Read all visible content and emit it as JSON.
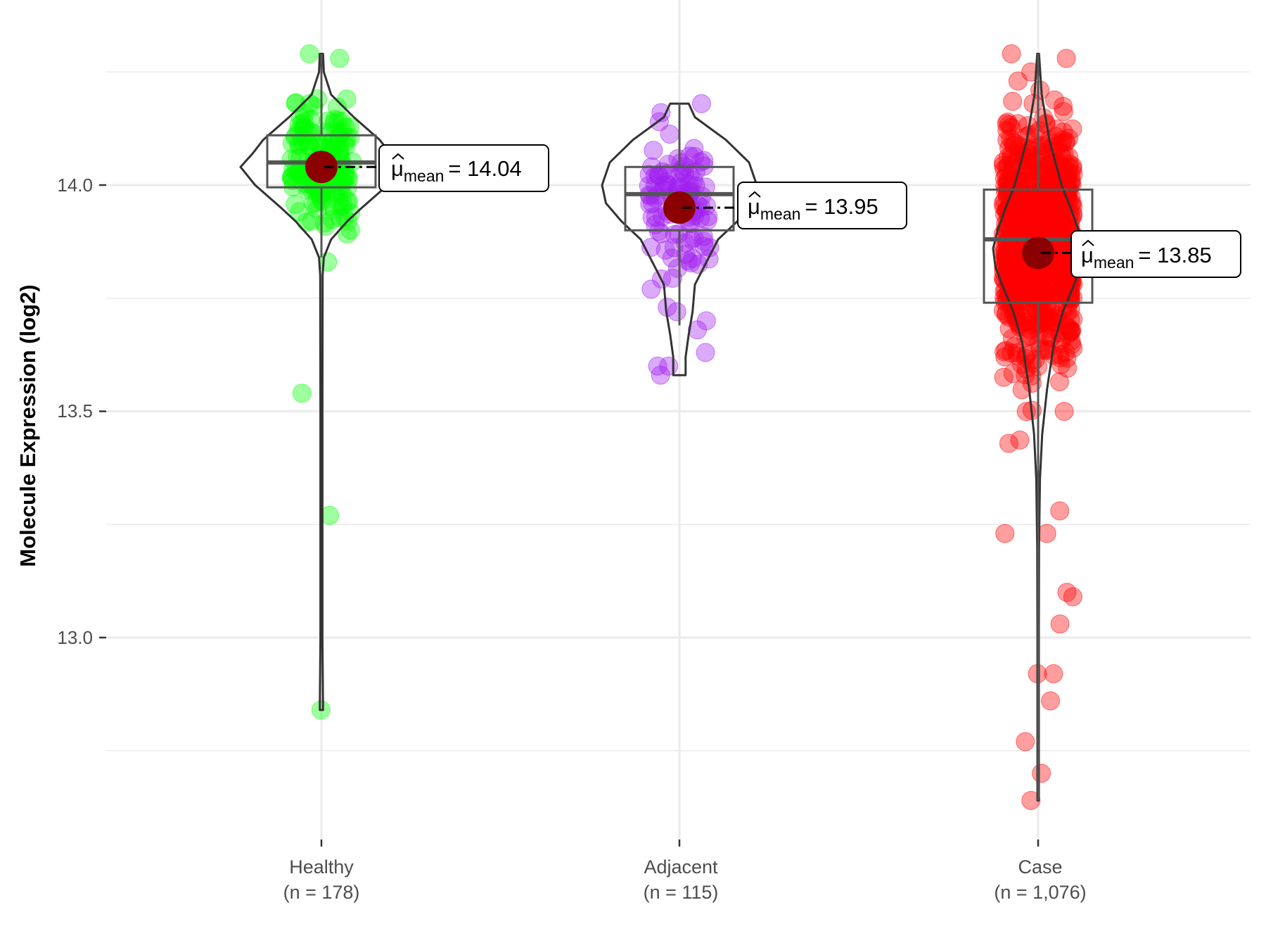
{
  "chart_data": {
    "type": "violin",
    "title": "",
    "xlabel": "",
    "ylabel": "Molecule Expression (log2)",
    "ylim": [
      12.55,
      14.41
    ],
    "yticks": [
      {
        "value": 13.0,
        "label": "13.0"
      },
      {
        "value": 13.5,
        "label": "13.5"
      },
      {
        "value": 14.0,
        "label": "14.0"
      }
    ],
    "minor_gridlines": [
      12.75,
      13.25,
      13.75,
      14.25
    ],
    "grid": true,
    "legend": "none",
    "mean_marker_color": "#8b0000",
    "series": [
      {
        "name": "Healthy",
        "label_line1": "Healthy",
        "label_line2": "(n = 178)",
        "n": 178,
        "color": "#00ff00",
        "mean": 14.04,
        "mean_label": {
          "symbol": "μ",
          "sub": "mean",
          "eq": "= 14.04"
        },
        "box": {
          "q1": 13.995,
          "median": 14.05,
          "q3": 14.11,
          "whisker_low": 13.84,
          "whisker_high": 14.29
        },
        "violin": {
          "min": 12.84,
          "max": 14.29,
          "profile": [
            [
              14.29,
              0.02
            ],
            [
              14.25,
              0.03
            ],
            [
              14.2,
              0.12
            ],
            [
              14.15,
              0.4
            ],
            [
              14.1,
              0.72
            ],
            [
              14.07,
              0.85
            ],
            [
              14.04,
              1.0
            ],
            [
              14.0,
              0.82
            ],
            [
              13.95,
              0.5
            ],
            [
              13.92,
              0.32
            ],
            [
              13.88,
              0.12
            ],
            [
              13.84,
              0.03
            ],
            [
              13.8,
              0.015
            ],
            [
              13.5,
              0.012
            ],
            [
              13.0,
              0.012
            ],
            [
              12.84,
              0.02
            ]
          ]
        },
        "points_dense": {
          "center": 14.04,
          "spread": 0.07,
          "lo": 13.88,
          "hi": 14.2,
          "count": 170
        },
        "points_extra": [
          14.29,
          14.28,
          14.19,
          14.18,
          13.83,
          13.54,
          13.27,
          12.84
        ]
      },
      {
        "name": "Adjacent",
        "label_line1": "Adjacent",
        "label_line2": "(n = 115)",
        "n": 115,
        "color": "#a020f0",
        "mean": 13.95,
        "mean_label": {
          "symbol": "μ",
          "sub": "mean",
          "eq": "= 13.95"
        },
        "box": {
          "q1": 13.9,
          "median": 13.98,
          "q3": 14.04,
          "whisker_low": 13.69,
          "whisker_high": 14.18
        },
        "violin": {
          "min": 13.58,
          "max": 14.18,
          "profile": [
            [
              14.18,
              0.12
            ],
            [
              14.15,
              0.2
            ],
            [
              14.1,
              0.6
            ],
            [
              14.05,
              0.9
            ],
            [
              14.0,
              1.0
            ],
            [
              13.96,
              0.95
            ],
            [
              13.92,
              0.75
            ],
            [
              13.88,
              0.5
            ],
            [
              13.82,
              0.32
            ],
            [
              13.78,
              0.2
            ],
            [
              13.72,
              0.17
            ],
            [
              13.67,
              0.12
            ],
            [
              13.62,
              0.08
            ],
            [
              13.58,
              0.08
            ]
          ]
        },
        "points_dense": {
          "center": 13.96,
          "spread": 0.08,
          "lo": 13.78,
          "hi": 14.12,
          "count": 100
        },
        "points_extra": [
          14.18,
          14.16,
          14.14,
          13.77,
          13.72,
          13.73,
          13.7,
          13.68,
          13.63,
          13.6,
          13.58,
          13.6
        ]
      },
      {
        "name": "Case",
        "label_line1": "Case",
        "label_line2": "(n = 1,076)",
        "n": 1076,
        "color": "#ff0000",
        "mean": 13.85,
        "mean_label": {
          "symbol": "μ",
          "sub": "mean",
          "eq": "= 13.85"
        },
        "box": {
          "q1": 13.74,
          "median": 13.88,
          "q3": 13.99,
          "whisker_low": 12.64,
          "whisker_high": 14.29
        },
        "violin": {
          "min": 12.64,
          "max": 14.29,
          "profile": [
            [
              14.29,
              0.02
            ],
            [
              14.2,
              0.08
            ],
            [
              14.1,
              0.25
            ],
            [
              14.0,
              0.52
            ],
            [
              13.95,
              0.72
            ],
            [
              13.9,
              0.9
            ],
            [
              13.86,
              1.0
            ],
            [
              13.82,
              0.95
            ],
            [
              13.78,
              0.8
            ],
            [
              13.72,
              0.55
            ],
            [
              13.65,
              0.35
            ],
            [
              13.55,
              0.2
            ],
            [
              13.45,
              0.09
            ],
            [
              13.35,
              0.04
            ],
            [
              13.2,
              0.02
            ],
            [
              13.0,
              0.015
            ],
            [
              12.64,
              0.015
            ]
          ]
        },
        "points_dense": {
          "center": 13.87,
          "spread": 0.13,
          "lo": 13.35,
          "hi": 14.2,
          "count": 900
        },
        "points_extra": [
          14.29,
          14.28,
          14.25,
          14.23,
          14.21,
          13.28,
          13.23,
          13.23,
          13.1,
          13.09,
          13.03,
          12.92,
          12.92,
          12.86,
          12.77,
          12.7,
          12.64
        ]
      }
    ]
  }
}
